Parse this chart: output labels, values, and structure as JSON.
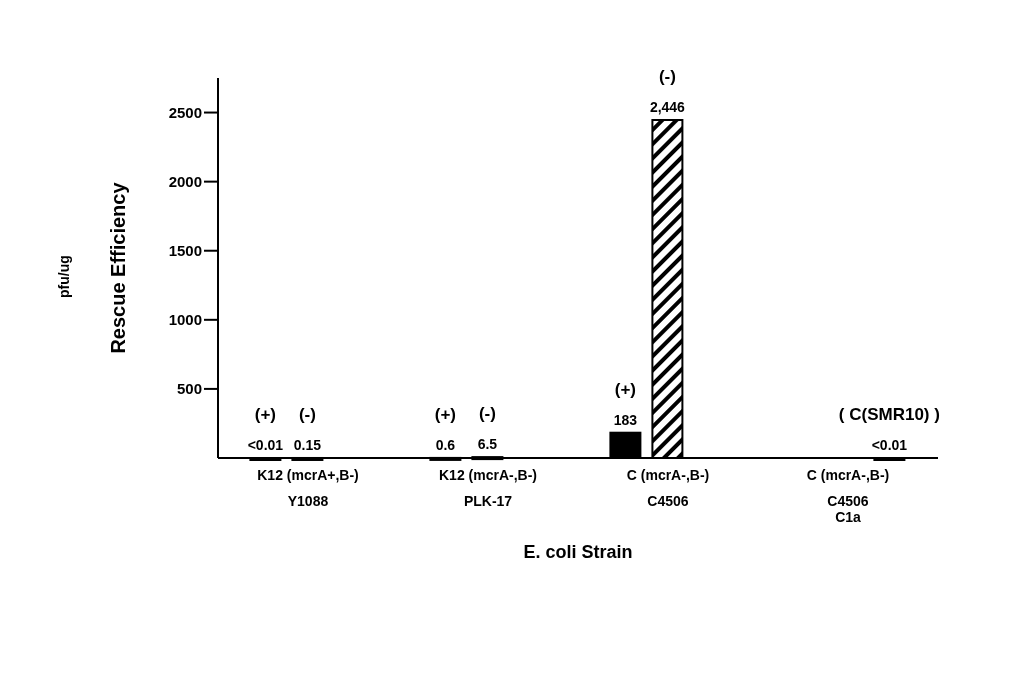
{
  "chart_data": {
    "type": "bar",
    "categories": [
      "K12  (mcrA+,B-)\nY1088",
      "K12  (mcrA-,B-)\nPLK-17",
      "C  (mcrA-,B-)\nC4506",
      "C  (mcrA-,B-)\nC4506\nC1a"
    ],
    "series": [
      {
        "name": "(+)",
        "color": "#000000",
        "values": [
          0.01,
          0.6,
          183,
          null
        ],
        "value_labels": [
          "<0.01",
          "0.6",
          "183",
          null
        ]
      },
      {
        "name": "(-)",
        "color": "#000000",
        "values": [
          0.15,
          6.5,
          2446,
          null
        ],
        "value_labels": [
          "0.15",
          "6.5",
          "2,446",
          null
        ]
      },
      {
        "name": "( C(SMR10) )",
        "color": "#000000",
        "values": [
          null,
          null,
          null,
          0.01
        ],
        "value_labels": [
          null,
          null,
          null,
          "<0.01"
        ]
      }
    ],
    "ylabel": "Rescue Efficiency",
    "xlabel": "E. coli Strain",
    "annotations": [
      "pfu/ug"
    ],
    "ylim": [
      0,
      2750
    ],
    "yticks": [
      500,
      1000,
      1500,
      2000,
      2500
    ],
    "grid": false
  }
}
